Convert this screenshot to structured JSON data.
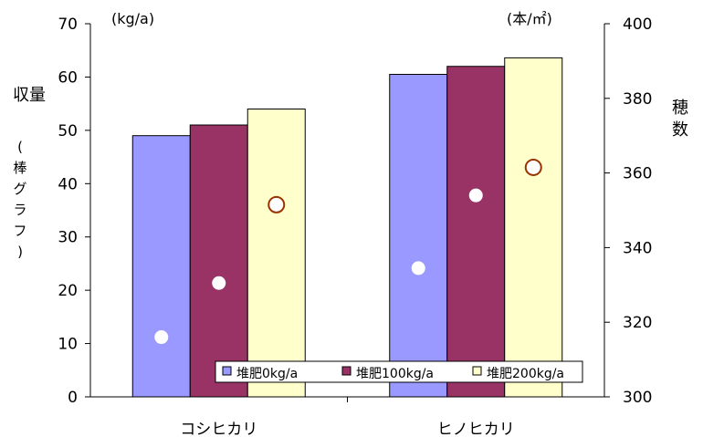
{
  "chart_data": {
    "type": "bar",
    "categories": [
      "コシヒカリ",
      "ヒノヒカリ"
    ],
    "series": [
      {
        "name": "堆肥0kg/a",
        "values": [
          49,
          60.5
        ],
        "color": "#9999FF"
      },
      {
        "name": "堆肥100kg/a",
        "values": [
          51,
          62
        ],
        "color": "#993366"
      },
      {
        "name": "堆肥200kg/a",
        "values": [
          54,
          63.6
        ],
        "color": "#FFFFCC"
      }
    ],
    "secondary_series": [
      {
        "name": "堆肥0kg/a",
        "values": [
          316,
          334.5
        ],
        "marker_edge": "#9999FF"
      },
      {
        "name": "堆肥100kg/a",
        "values": [
          330.5,
          354
        ],
        "marker_edge": "#993366"
      },
      {
        "name": "堆肥200kg/a",
        "values": [
          351.5,
          361.5
        ],
        "marker_edge": "#993300"
      }
    ],
    "ylim": [
      0,
      70
    ],
    "yticks": [
      0,
      10,
      20,
      30,
      40,
      50,
      60,
      70
    ],
    "y2lim": [
      300,
      400
    ],
    "y2ticks": [
      300,
      320,
      340,
      360,
      380,
      400
    ],
    "y_unit": "(kg/a)",
    "y2_unit": "(本/㎡)",
    "ylabel_main": "収量",
    "ylabel_sub": [
      "(",
      "棒",
      "グ",
      "ラ",
      "フ",
      ")"
    ],
    "y2label": [
      "穂",
      "数"
    ],
    "legend_position": "bottom-right",
    "grid": false
  }
}
